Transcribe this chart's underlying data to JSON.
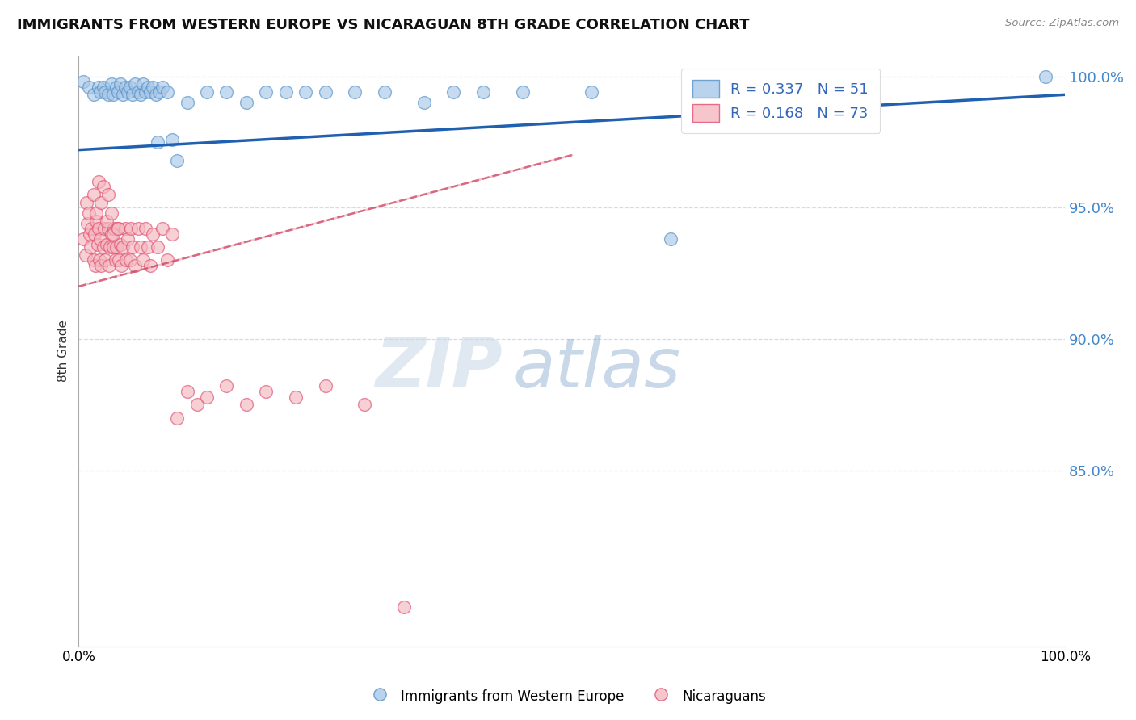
{
  "title": "IMMIGRANTS FROM WESTERN EUROPE VS NICARAGUAN 8TH GRADE CORRELATION CHART",
  "source_text": "Source: ZipAtlas.com",
  "ylabel": "8th Grade",
  "xlim": [
    0.0,
    1.0
  ],
  "ylim": [
    0.783,
    1.008
  ],
  "yticks": [
    0.85,
    0.9,
    0.95,
    1.0
  ],
  "yticklabels": [
    "85.0%",
    "90.0%",
    "95.0%",
    "100.0%"
  ],
  "blue_color": "#a8c8e8",
  "pink_color": "#f4b8c0",
  "blue_edge": "#5590c8",
  "pink_edge": "#e05070",
  "trend_blue_color": "#2060b0",
  "trend_pink_color": "#d04060",
  "R_blue": 0.337,
  "N_blue": 51,
  "R_pink": 0.168,
  "N_pink": 73,
  "watermark_zip": "ZIP",
  "watermark_atlas": "atlas",
  "legend_blue": "Immigrants from Western Europe",
  "legend_pink": "Nicaraguans",
  "blue_scatter_x": [
    0.005,
    0.01,
    0.015,
    0.02,
    0.022,
    0.025,
    0.027,
    0.03,
    0.033,
    0.035,
    0.038,
    0.04,
    0.042,
    0.045,
    0.047,
    0.05,
    0.052,
    0.055,
    0.057,
    0.06,
    0.063,
    0.065,
    0.068,
    0.07,
    0.073,
    0.075,
    0.078,
    0.08,
    0.082,
    0.085,
    0.09,
    0.095,
    0.1,
    0.11,
    0.13,
    0.15,
    0.17,
    0.19,
    0.21,
    0.23,
    0.25,
    0.28,
    0.31,
    0.35,
    0.38,
    0.41,
    0.45,
    0.52,
    0.6,
    0.76,
    0.98
  ],
  "blue_scatter_y": [
    0.998,
    0.996,
    0.993,
    0.996,
    0.994,
    0.996,
    0.994,
    0.993,
    0.997,
    0.993,
    0.996,
    0.994,
    0.997,
    0.993,
    0.996,
    0.994,
    0.996,
    0.993,
    0.997,
    0.994,
    0.993,
    0.997,
    0.994,
    0.996,
    0.994,
    0.996,
    0.993,
    0.975,
    0.994,
    0.996,
    0.994,
    0.976,
    0.968,
    0.99,
    0.994,
    0.994,
    0.99,
    0.994,
    0.994,
    0.994,
    0.994,
    0.994,
    0.994,
    0.99,
    0.994,
    0.994,
    0.994,
    0.994,
    0.938,
    0.994,
    1.0
  ],
  "pink_scatter_x": [
    0.005,
    0.007,
    0.008,
    0.009,
    0.01,
    0.011,
    0.012,
    0.013,
    0.015,
    0.016,
    0.017,
    0.018,
    0.019,
    0.02,
    0.021,
    0.022,
    0.023,
    0.025,
    0.026,
    0.027,
    0.028,
    0.03,
    0.031,
    0.032,
    0.033,
    0.035,
    0.036,
    0.037,
    0.038,
    0.04,
    0.041,
    0.042,
    0.043,
    0.045,
    0.047,
    0.048,
    0.05,
    0.052,
    0.053,
    0.055,
    0.057,
    0.06,
    0.063,
    0.065,
    0.068,
    0.07,
    0.073,
    0.075,
    0.08,
    0.085,
    0.09,
    0.095,
    0.1,
    0.11,
    0.12,
    0.13,
    0.15,
    0.17,
    0.19,
    0.22,
    0.25,
    0.29,
    0.33,
    0.015,
    0.018,
    0.02,
    0.023,
    0.025,
    0.028,
    0.03,
    0.033,
    0.035,
    0.04
  ],
  "pink_scatter_y": [
    0.938,
    0.932,
    0.952,
    0.944,
    0.948,
    0.94,
    0.935,
    0.942,
    0.93,
    0.94,
    0.928,
    0.945,
    0.936,
    0.942,
    0.93,
    0.938,
    0.928,
    0.935,
    0.942,
    0.93,
    0.936,
    0.942,
    0.928,
    0.935,
    0.94,
    0.935,
    0.942,
    0.93,
    0.935,
    0.942,
    0.93,
    0.936,
    0.928,
    0.935,
    0.942,
    0.93,
    0.938,
    0.93,
    0.942,
    0.935,
    0.928,
    0.942,
    0.935,
    0.93,
    0.942,
    0.935,
    0.928,
    0.94,
    0.935,
    0.942,
    0.93,
    0.94,
    0.87,
    0.88,
    0.875,
    0.878,
    0.882,
    0.875,
    0.88,
    0.878,
    0.882,
    0.875,
    0.798,
    0.955,
    0.948,
    0.96,
    0.952,
    0.958,
    0.945,
    0.955,
    0.948,
    0.94,
    0.942
  ],
  "blue_trend_x0": 0.0,
  "blue_trend_y0": 0.972,
  "blue_trend_x1": 1.0,
  "blue_trend_y1": 0.993,
  "pink_trend_x0": 0.0,
  "pink_trend_y0": 0.92,
  "pink_trend_x1": 0.5,
  "pink_trend_y1": 0.97
}
